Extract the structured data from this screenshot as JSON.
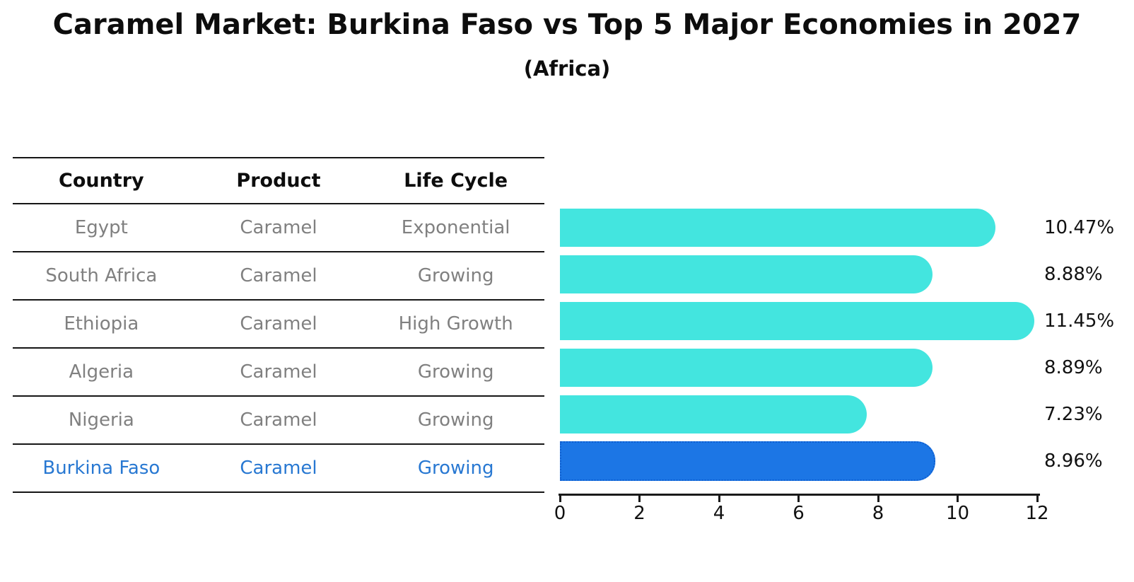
{
  "title": "Caramel Market: Burkina Faso vs Top 5 Major Economies in 2027",
  "subtitle": "(Africa)",
  "table": {
    "headers": [
      "Country",
      "Product",
      "Life Cycle"
    ],
    "rows": [
      {
        "country": "Egypt",
        "product": "Caramel",
        "life_cycle": "Exponential",
        "highlight": false
      },
      {
        "country": "South Africa",
        "product": "Caramel",
        "life_cycle": "Growing",
        "highlight": false
      },
      {
        "country": "Ethiopia",
        "product": "Caramel",
        "life_cycle": "High Growth",
        "highlight": false
      },
      {
        "country": "Algeria",
        "product": "Caramel",
        "life_cycle": "Growing",
        "highlight": false
      },
      {
        "country": "Nigeria",
        "product": "Caramel",
        "life_cycle": "Growing",
        "highlight": false
      },
      {
        "country": "Burkina Faso",
        "product": "Caramel",
        "life_cycle": "Growing",
        "highlight": true
      }
    ]
  },
  "chart_data": {
    "type": "bar",
    "orientation": "horizontal",
    "title": "Caramel Market: Burkina Faso vs Top 5 Major Economies in 2027 (Africa)",
    "categories": [
      "Egypt",
      "South Africa",
      "Ethiopia",
      "Algeria",
      "Nigeria",
      "Burkina Faso"
    ],
    "values": [
      10.47,
      8.88,
      11.45,
      8.89,
      7.23,
      8.96
    ],
    "labels": [
      "10.47%",
      "8.88%",
      "11.45%",
      "8.89%",
      "7.23%",
      "8.96%"
    ],
    "value_unit": "%",
    "xlim": [
      0,
      12
    ],
    "x_ticks": [
      0,
      2,
      4,
      6,
      8,
      10,
      12
    ],
    "grid": false,
    "legend": "none",
    "highlight_index": 5
  },
  "colors": {
    "bar": "#43e5df",
    "highlight_bar": "#1c76e5",
    "highlight_bar_edge": "#0f5fd0",
    "highlight_text": "#2878d2",
    "muted_text": "#808080",
    "text": "#0d0d0d"
  }
}
